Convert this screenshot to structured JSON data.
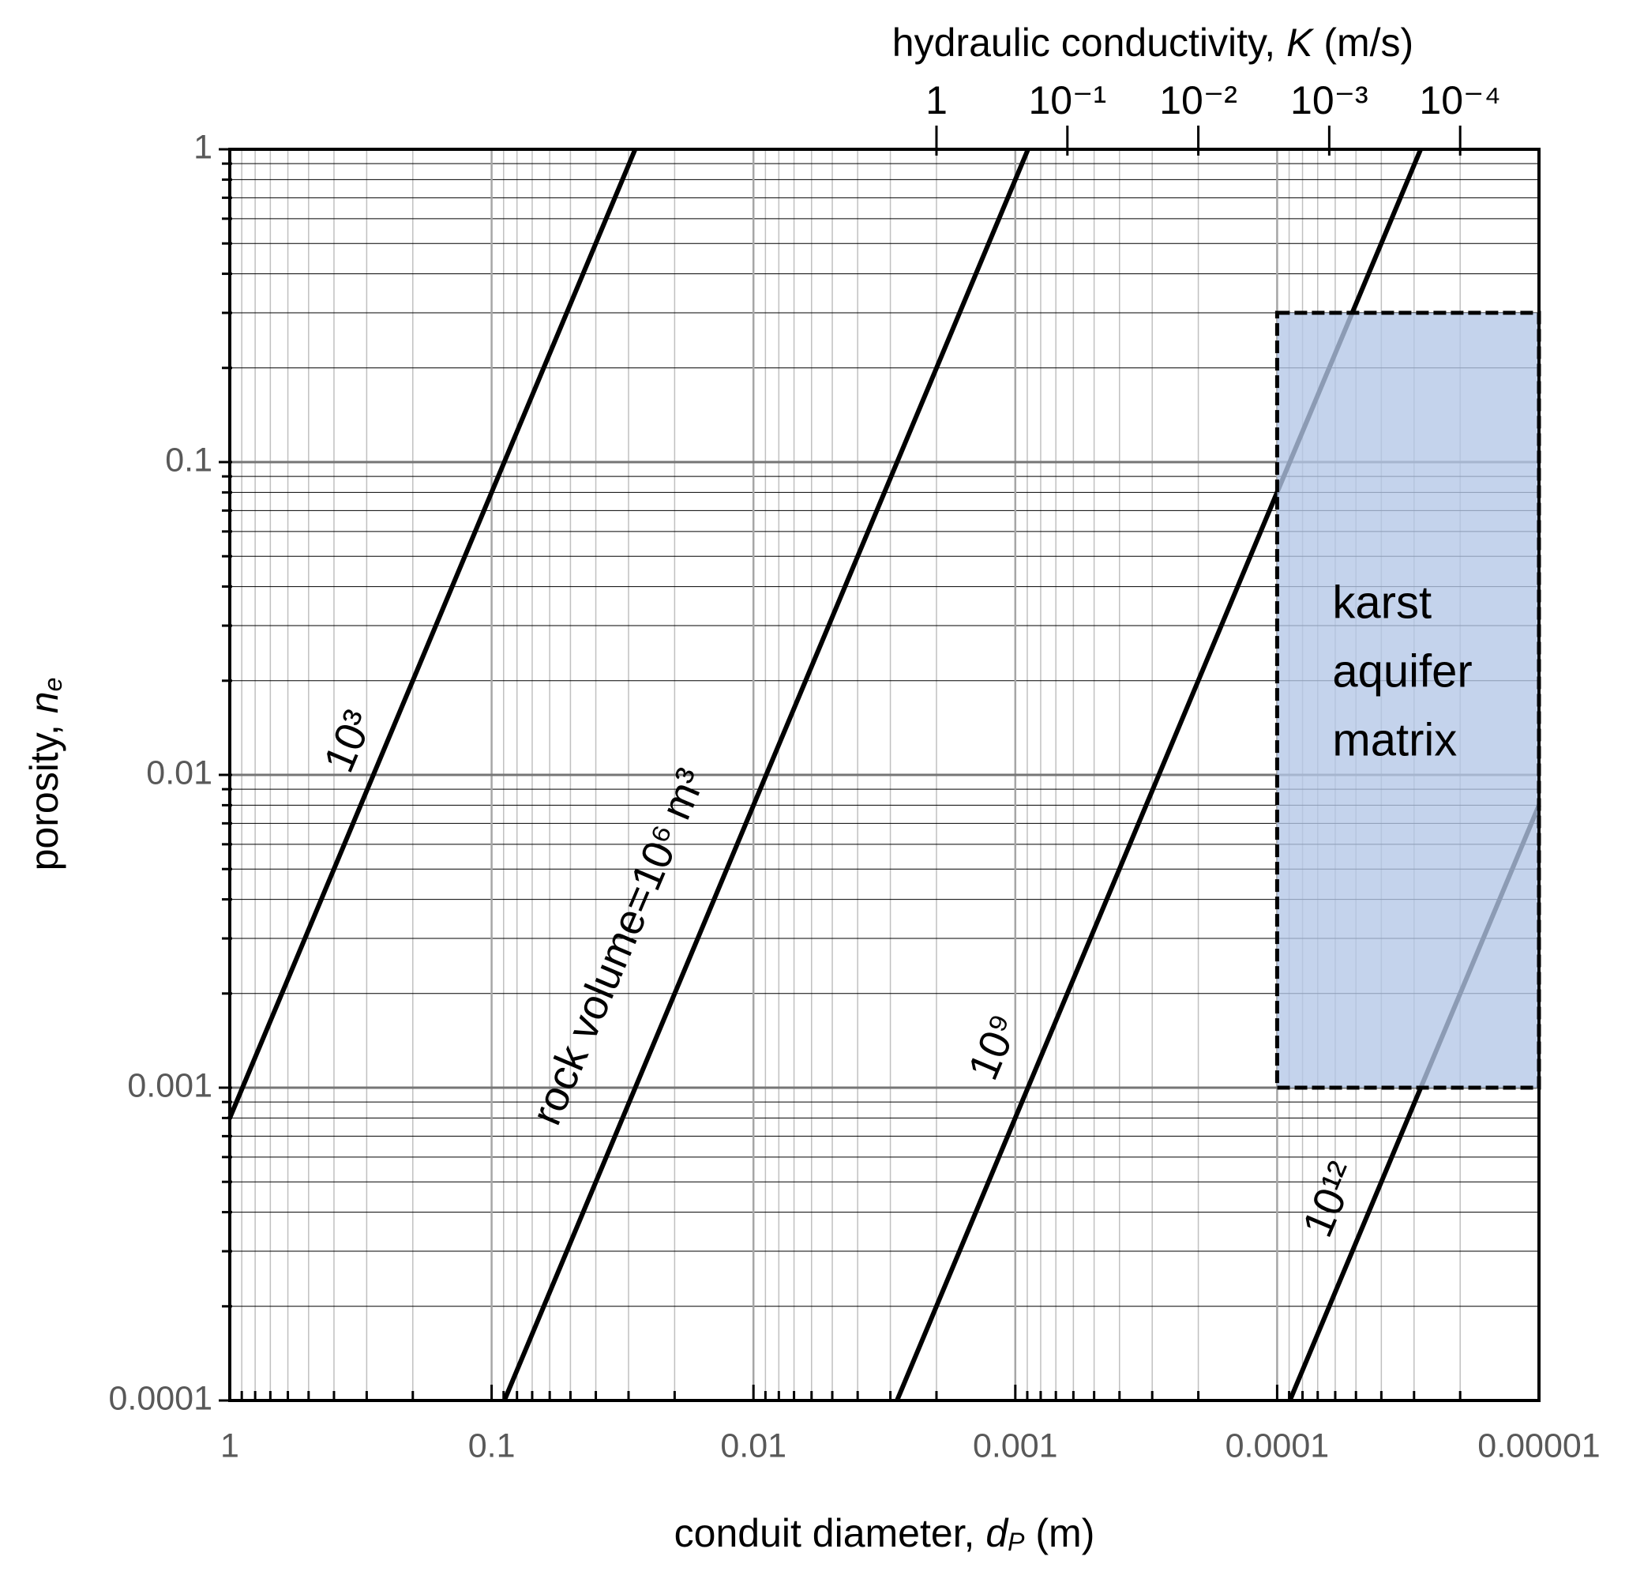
{
  "chart_data": {
    "type": "line",
    "xlabel": {
      "text": "conduit diameter, ",
      "symbol": "d",
      "subscript": "P",
      "unit": " (m)"
    },
    "ylabel": {
      "text": "porosity, ",
      "symbol": "n",
      "subscript": "e"
    },
    "x2label": {
      "text": "hydraulic conductivity, ",
      "symbol": "K",
      "unit": " (m/s)"
    },
    "xscale": "log",
    "yscale": "log",
    "xlim": [
      1,
      1e-05
    ],
    "xticks": [
      1,
      0.1,
      0.01,
      0.001,
      0.0001,
      1e-05
    ],
    "ylim": [
      0.0001,
      1
    ],
    "yticks": [
      0.0001,
      0.001,
      0.01,
      0.1,
      1
    ],
    "x2lim": [
      250000,
      2.5e-05
    ],
    "x2ticks": [
      1,
      {
        "value": 0.1,
        "label": "10⁻¹"
      },
      {
        "value": 0.01,
        "label": "10⁻²"
      },
      {
        "value": 0.001,
        "label": "10⁻³"
      },
      {
        "value": 0.0001,
        "label": "10⁻⁴"
      }
    ],
    "grid": true,
    "minor_grid": true,
    "series": [
      {
        "name": "10³",
        "color": "#000000",
        "x": [
          1,
          0.0283
        ],
        "values": [
          0.0008,
          1
        ]
      },
      {
        "name": "rock volume=10⁶ m³",
        "color": "#000000",
        "x": [
          0.0894,
          0.000894
        ],
        "values": [
          0.0001,
          1
        ]
      },
      {
        "name": "10⁹",
        "color": "#000000",
        "x": [
          0.00283,
          2.83e-05
        ],
        "values": [
          0.0001,
          1
        ]
      },
      {
        "name": "10¹²",
        "color": "#000000",
        "x": [
          8.94e-05,
          1e-05
        ],
        "values": [
          0.0001,
          0.008
        ]
      }
    ],
    "region": {
      "x": [
        0.0001,
        1e-05
      ],
      "y": [
        0.001,
        0.3
      ],
      "color": "#b4c7e7",
      "label": [
        "karst",
        "aquifer",
        "matrix"
      ]
    }
  }
}
